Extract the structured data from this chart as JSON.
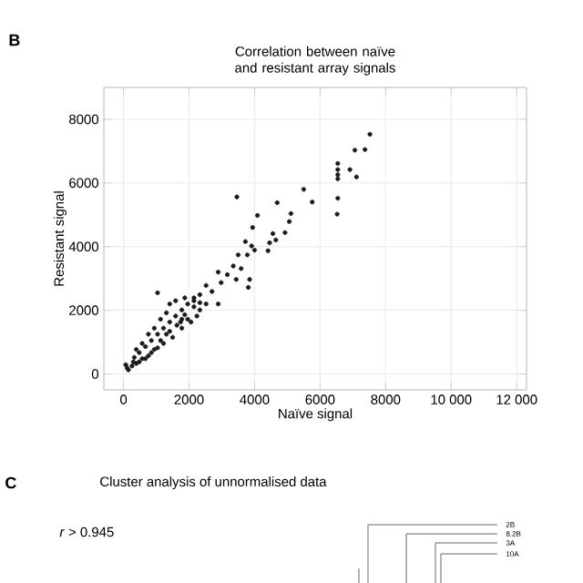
{
  "chart_data": [
    {
      "type": "scatter",
      "title": "Correlation between naïve and resistant array signals",
      "xlabel": "Naïve signal",
      "ylabel": "Resistant signal",
      "annotations": [
        "B"
      ],
      "color": "#1a1a1a",
      "marker": "circle",
      "grid": true,
      "xlim": [
        -600,
        12300
      ],
      "ylim": [
        -500,
        9000
      ],
      "xticks": [
        0,
        2000,
        4000,
        6000,
        8000,
        {
          "value": 10000,
          "label": "10 000"
        },
        {
          "value": 12000,
          "label": "12 000"
        }
      ],
      "yticks": [
        0,
        2000,
        4000,
        6000,
        8000
      ],
      "x": [
        7520,
        7060,
        7370,
        6910,
        7110,
        6540,
        6540,
        6540,
        6540,
        6540,
        6520,
        5500,
        5760,
        3460,
        4690,
        4090,
        5110,
        5060,
        4930,
        4560,
        4650,
        4460,
        4410,
        3940,
        3720,
        3910,
        4000,
        3780,
        3500,
        3350,
        3590,
        3850,
        3810,
        2890,
        3170,
        2980,
        3440,
        2520,
        2700,
        2330,
        2150,
        2890,
        1040,
        110,
        300,
        480,
        670,
        850,
        1040,
        1220,
        1410,
        1590,
        1780,
        1960,
        2150,
        570,
        760,
        940,
        1220,
        1500,
        1780,
        2060,
        390,
        570,
        760,
        940,
        1130,
        1310,
        1410,
        1590,
        1870,
        1780,
        2330,
        2520,
        2240,
        1960,
        70,
        150,
        260,
        390,
        330,
        480,
        670,
        850,
        1040,
        1130,
        1310,
        1410,
        1630,
        1740,
        1870,
        2150,
        2330
      ],
      "values": [
        7530,
        7030,
        7050,
        6420,
        6190,
        6610,
        6420,
        6260,
        6130,
        5520,
        5020,
        5800,
        5400,
        5560,
        5380,
        4980,
        5040,
        4790,
        4440,
        4410,
        4210,
        4120,
        3870,
        4600,
        4160,
        4020,
        3890,
        3740,
        3740,
        3390,
        3310,
        2970,
        2720,
        3200,
        3120,
        2870,
        2970,
        2780,
        2590,
        2490,
        2390,
        2200,
        2550,
        190,
        380,
        670,
        860,
        1050,
        1250,
        1440,
        1630,
        1820,
        2010,
        2200,
        2300,
        480,
        570,
        770,
        960,
        1150,
        1440,
        1630,
        770,
        960,
        1250,
        1440,
        1720,
        1920,
        2200,
        2300,
        2390,
        1720,
        2010,
        2200,
        1820,
        1720,
        290,
        130,
        250,
        330,
        520,
        380,
        480,
        670,
        820,
        1050,
        1250,
        1340,
        1530,
        1630,
        1860,
        2110,
        2240
      ]
    },
    {
      "type": "other",
      "title": "Cluster analysis of unnormalised data",
      "annotations": [
        "C",
        "*r* > 0.945",
        "2B",
        "8.2B",
        "3A",
        "10A"
      ]
    }
  ]
}
